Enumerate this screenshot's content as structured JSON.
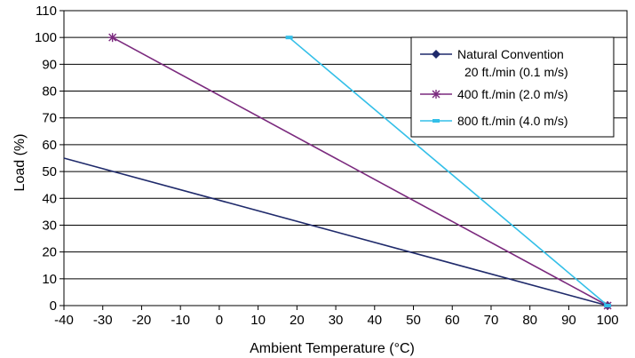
{
  "chart_data": {
    "type": "line",
    "title": "",
    "xlabel": "Ambient Temperature (°C)",
    "ylabel": "Load (%)",
    "xlim": [
      -40,
      105
    ],
    "ylim": [
      0,
      110
    ],
    "x_ticks": [
      "-40",
      "-30",
      "-20",
      "-10",
      "0",
      "10",
      "20",
      "30",
      "40",
      "50",
      "60",
      "70",
      "80",
      "90",
      "100"
    ],
    "y_ticks": [
      "0",
      "10",
      "20",
      "30",
      "40",
      "50",
      "60",
      "70",
      "80",
      "90",
      "100",
      "110"
    ],
    "grid": "horizontal",
    "legend_position": "top-right",
    "series": [
      {
        "name_line1": "Natural Convention",
        "name_line2": "20 ft./min (0.1 m/s)",
        "color": "#1f2a6b",
        "marker": "diamond",
        "points": [
          [
            -40,
            55
          ],
          [
            100,
            0
          ]
        ]
      },
      {
        "name_line1": "400 ft./min (2.0 m/s)",
        "name_line2": "",
        "color": "#7b2a7e",
        "marker": "asterisk",
        "points": [
          [
            -27.5,
            100
          ],
          [
            100,
            0
          ]
        ]
      },
      {
        "name_line1": "800 ft./min (4.0 m/s)",
        "name_line2": "",
        "color": "#33bfe8",
        "marker": "dash",
        "points": [
          [
            18,
            100
          ],
          [
            100,
            0
          ]
        ]
      }
    ]
  }
}
